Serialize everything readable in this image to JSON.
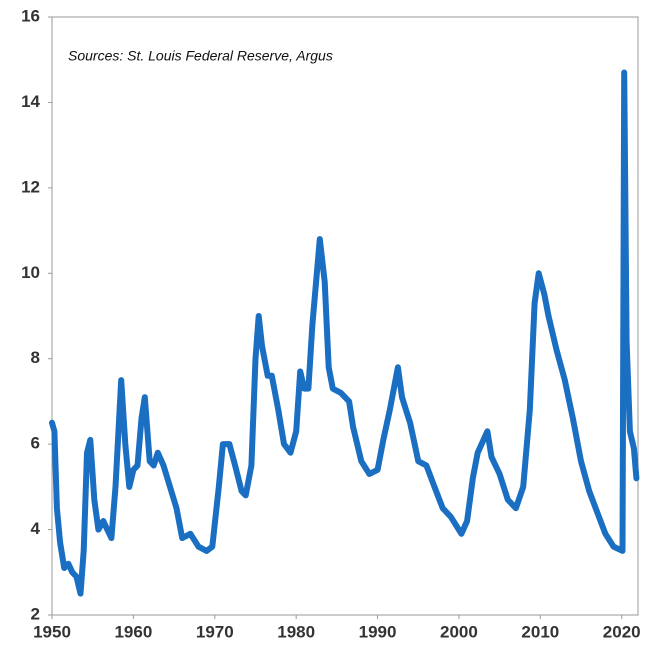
{
  "chart_data": {
    "type": "line",
    "annotation": "Sources: St. Louis Federal Reserve, Argus",
    "x": [
      1950.0,
      1950.3,
      1950.6,
      1951.0,
      1951.5,
      1952.0,
      1952.5,
      1953.0,
      1953.5,
      1953.9,
      1954.3,
      1954.7,
      1955.2,
      1955.7,
      1956.3,
      1956.8,
      1957.3,
      1957.8,
      1958.5,
      1959.0,
      1959.5,
      1960.0,
      1960.5,
      1961.0,
      1961.4,
      1962.0,
      1962.5,
      1963.0,
      1963.7,
      1964.5,
      1965.3,
      1966.0,
      1967.0,
      1968.0,
      1969.0,
      1969.7,
      1970.5,
      1971.0,
      1971.8,
      1972.5,
      1973.3,
      1973.8,
      1974.5,
      1975.0,
      1975.4,
      1975.8,
      1976.5,
      1977.0,
      1977.8,
      1978.5,
      1979.3,
      1980.0,
      1980.5,
      1981.0,
      1981.5,
      1982.0,
      1982.9,
      1983.5,
      1984.0,
      1984.5,
      1985.5,
      1986.5,
      1987.0,
      1988.0,
      1989.0,
      1990.0,
      1990.7,
      1991.5,
      1992.5,
      1993.0,
      1993.5,
      1994.0,
      1995.0,
      1996.0,
      1997.0,
      1998.0,
      1999.0,
      2000.3,
      2001.0,
      2001.7,
      2002.3,
      2003.5,
      2004.0,
      2005.0,
      2006.0,
      2007.0,
      2007.9,
      2008.7,
      2009.3,
      2009.8,
      2010.5,
      2011.0,
      2012.0,
      2013.0,
      2014.0,
      2015.0,
      2016.0,
      2017.0,
      2018.0,
      2019.0,
      2020.1,
      2020.3,
      2020.6,
      2021.0,
      2021.5,
      2021.8
    ],
    "series": [
      {
        "color": "#1b6fc2",
        "values": [
          6.5,
          6.3,
          4.5,
          3.7,
          3.1,
          3.2,
          3.0,
          2.9,
          2.5,
          3.5,
          5.8,
          6.1,
          4.7,
          4.0,
          4.2,
          4.0,
          3.8,
          5.0,
          7.5,
          6.0,
          5.0,
          5.4,
          5.5,
          6.6,
          7.1,
          5.6,
          5.5,
          5.8,
          5.5,
          5.0,
          4.5,
          3.8,
          3.9,
          3.6,
          3.5,
          3.6,
          5.0,
          6.0,
          6.0,
          5.5,
          4.9,
          4.8,
          5.5,
          8.0,
          9.0,
          8.3,
          7.6,
          7.6,
          6.8,
          6.0,
          5.8,
          6.3,
          7.7,
          7.3,
          7.3,
          8.8,
          10.8,
          9.8,
          7.8,
          7.3,
          7.2,
          7.0,
          6.4,
          5.6,
          5.3,
          5.4,
          6.1,
          6.8,
          7.8,
          7.1,
          6.8,
          6.5,
          5.6,
          5.5,
          5.0,
          4.5,
          4.3,
          3.9,
          4.2,
          5.2,
          5.8,
          6.3,
          5.7,
          5.3,
          4.7,
          4.5,
          5.0,
          6.8,
          9.3,
          10.0,
          9.5,
          9.0,
          8.2,
          7.5,
          6.6,
          5.6,
          4.9,
          4.4,
          3.9,
          3.6,
          3.5,
          14.7,
          8.4,
          6.3,
          5.9,
          5.2
        ]
      }
    ],
    "xlim": [
      1950,
      2022
    ],
    "xticks": [
      1950,
      1960,
      1970,
      1980,
      1990,
      2000,
      2010,
      2020
    ],
    "ylim": [
      2,
      16
    ],
    "yticks": [
      2,
      4,
      6,
      8,
      10,
      12,
      14,
      16
    ],
    "grid": false
  }
}
